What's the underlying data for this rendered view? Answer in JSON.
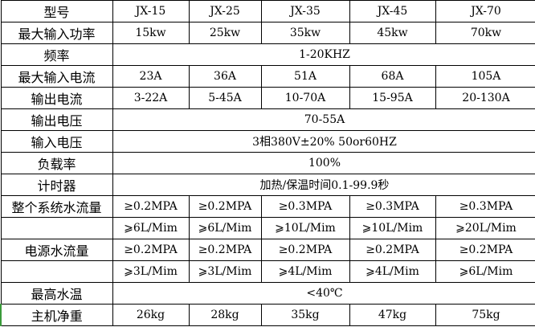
{
  "header": {
    "label": "型号",
    "models": [
      "JX-15",
      "JX-25",
      "JX-35",
      "JX-45",
      "JX-70"
    ]
  },
  "rows": [
    {
      "label": "最大输入功率",
      "values": [
        "15kw",
        "25kw",
        "35kw",
        "45kw",
        "70kw"
      ]
    },
    {
      "label": "频率",
      "span": "1-20KHZ"
    },
    {
      "label": "最大输入电流",
      "values": [
        "23A",
        "36A",
        "51A",
        "68A",
        "105A"
      ]
    },
    {
      "label": "输出电流",
      "values": [
        "3-22A",
        "5-45A",
        "10-70A",
        "15-95A",
        "20-130A"
      ]
    },
    {
      "label": "输出电压",
      "span": "70-55A"
    },
    {
      "label": "输入电压",
      "span": "3相380V±20% 50or60HZ"
    },
    {
      "label": "负载率",
      "span": "100%"
    },
    {
      "label": "计时器",
      "span": "加热/保温时间0.1-99.9秒"
    },
    {
      "label": "整个系统水流量",
      "values": [
        "≥0.2MPA",
        "≥0.2MPA",
        "≥0.3MPA",
        "≥0.3MPA",
        "≥0.3MPA"
      ]
    },
    {
      "label": "",
      "values": [
        "⩾6L/Mim",
        "⩾6L/Mim",
        "⩾10L/Mim",
        "⩾10L/Mim",
        "⩾20L/Mim"
      ]
    },
    {
      "label": "电源水流量",
      "values": [
        "≥0.2MPA",
        "≥0.2MPA",
        "≥0.2MPA",
        "≥0.2MPA",
        "≥0.2MPA"
      ]
    },
    {
      "label": "",
      "values": [
        "⩾3L/Mim",
        "⩾3L/Mim",
        "⩾4L/Mim",
        "⩾4L/Mim",
        "⩾6L/Mim"
      ]
    },
    {
      "label": "最高水温",
      "span": "<40℃"
    },
    {
      "label": "主机净重",
      "values": [
        "26kg",
        "28kg",
        "35kg",
        "47kg",
        "75kg"
      ]
    }
  ]
}
